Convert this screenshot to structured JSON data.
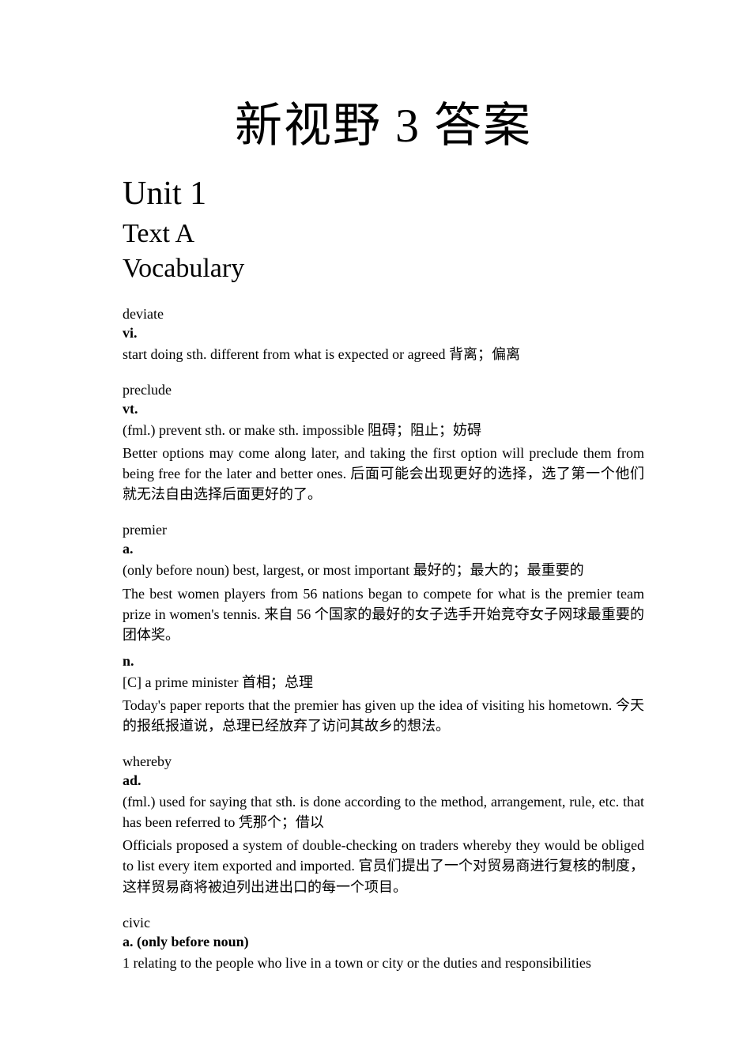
{
  "document": {
    "main_title": "新视野 3 答案",
    "unit_title": "Unit 1",
    "text_label": "Text A",
    "vocabulary_label": "Vocabulary",
    "text_color": "#000000",
    "background_color": "#ffffff",
    "main_title_fontsize": 60,
    "heading_fontsize": 42,
    "subheading_fontsize": 34,
    "body_fontsize": 18,
    "entries": [
      {
        "word": "deviate",
        "blocks": [
          {
            "pos": "vi.",
            "definition": "start doing sth. different from what is expected or agreed 背离；偏离",
            "example": ""
          }
        ]
      },
      {
        "word": "preclude",
        "blocks": [
          {
            "pos": "vt.",
            "definition": "(fml.) prevent sth. or make sth. impossible 阻碍；阻止；妨碍",
            "example": "Better options may come along later, and taking the first option will preclude them from being free for the later and better ones. 后面可能会出现更好的选择，选了第一个他们就无法自由选择后面更好的了。"
          }
        ]
      },
      {
        "word": "premier",
        "blocks": [
          {
            "pos": "a.",
            "definition": "(only before noun) best, largest, or most important 最好的；最大的；最重要的",
            "example": "The best women players from 56 nations began to compete for what is the premier team prize in women's tennis. 来自 56 个国家的最好的女子选手开始竞夺女子网球最重要的团体奖。"
          },
          {
            "pos": "n.",
            "definition": "[C] a prime minister 首相；总理",
            "example": "Today's paper reports that the premier has given up the idea of visiting his hometown. 今天的报纸报道说，总理已经放弃了访问其故乡的想法。"
          }
        ]
      },
      {
        "word": "whereby",
        "blocks": [
          {
            "pos": "ad.",
            "definition": "(fml.) used for saying that sth. is done according to the method, arrangement, rule, etc. that has been referred to 凭那个；借以",
            "example": "Officials proposed a system of double-checking on traders whereby they would be obliged to list every item exported and imported. 官员们提出了一个对贸易商进行复核的制度，这样贸易商将被迫列出进出口的每一个项目。"
          }
        ]
      },
      {
        "word": "civic",
        "blocks": [
          {
            "pos": "a. (only before noun)",
            "definition": "1 relating to the people who live in a town or city or the duties and responsibilities",
            "example": ""
          }
        ]
      }
    ]
  }
}
